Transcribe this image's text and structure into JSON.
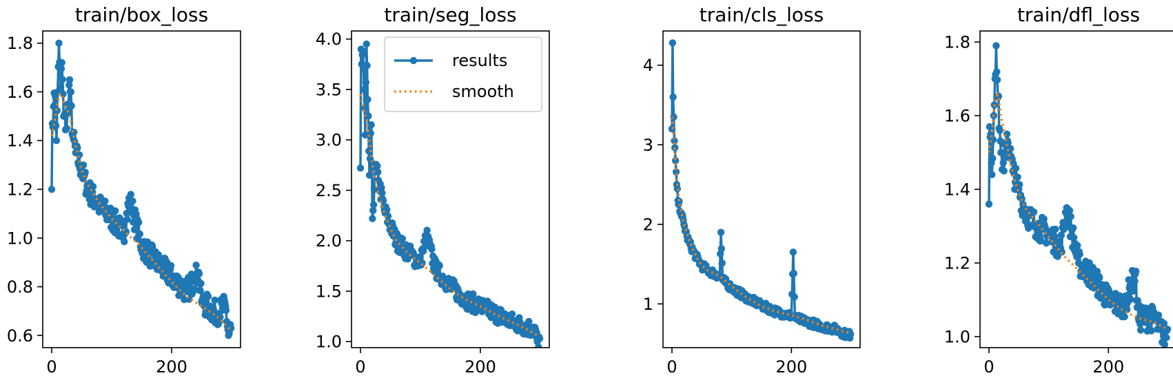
{
  "colors": {
    "results": "#1f77b4",
    "smooth": "#ff7f0e",
    "axis": "#000000"
  },
  "legend": {
    "location": "upper right (in second panel)",
    "results_label": "results",
    "smooth_label": "smooth"
  },
  "chart_data": [
    {
      "type": "line",
      "title": "train/box_loss",
      "xlim": [
        -15,
        315
      ],
      "ylim": [
        0.55,
        1.85
      ],
      "xticks": [
        0,
        200
      ],
      "yticks": [
        0.6,
        0.8,
        1.0,
        1.2,
        1.4,
        1.6,
        1.8
      ],
      "ytick_labels": [
        "0.6",
        "0.8",
        "1.0",
        "1.2",
        "1.4",
        "1.6",
        "1.8"
      ],
      "n_points": 300,
      "series": [
        {
          "name": "results",
          "style": "line+markers",
          "key_points": [
            [
              0,
              1.2
            ],
            [
              1,
              1.47
            ],
            [
              3,
              1.54
            ],
            [
              6,
              1.58
            ],
            [
              8,
              1.4
            ],
            [
              10,
              1.6
            ],
            [
              12,
              1.8
            ],
            [
              15,
              1.62
            ],
            [
              17,
              1.72
            ],
            [
              20,
              1.5
            ],
            [
              25,
              1.45
            ],
            [
              30,
              1.65
            ],
            [
              35,
              1.42
            ],
            [
              40,
              1.35
            ],
            [
              50,
              1.28
            ],
            [
              60,
              1.2
            ],
            [
              80,
              1.13
            ],
            [
              100,
              1.08
            ],
            [
              120,
              1.02
            ],
            [
              130,
              1.16
            ],
            [
              150,
              0.97
            ],
            [
              175,
              0.9
            ],
            [
              200,
              0.84
            ],
            [
              225,
              0.78
            ],
            [
              245,
              0.86
            ],
            [
              250,
              0.74
            ],
            [
              275,
              0.69
            ],
            [
              290,
              0.72
            ],
            [
              295,
              0.6
            ],
            [
              299,
              0.63
            ]
          ],
          "noise": 0.05
        },
        {
          "name": "smooth",
          "style": "dotted",
          "key_points": [
            [
              0,
              1.42
            ],
            [
              5,
              1.48
            ],
            [
              10,
              1.56
            ],
            [
              15,
              1.6
            ],
            [
              20,
              1.56
            ],
            [
              30,
              1.5
            ],
            [
              40,
              1.38
            ],
            [
              50,
              1.28
            ],
            [
              60,
              1.22
            ],
            [
              80,
              1.14
            ],
            [
              100,
              1.08
            ],
            [
              125,
              1.02
            ],
            [
              150,
              0.96
            ],
            [
              175,
              0.89
            ],
            [
              200,
              0.82
            ],
            [
              225,
              0.76
            ],
            [
              250,
              0.72
            ],
            [
              275,
              0.68
            ],
            [
              299,
              0.62
            ]
          ]
        }
      ]
    },
    {
      "type": "line",
      "title": "train/seg_loss",
      "xlim": [
        -15,
        315
      ],
      "ylim": [
        0.94,
        4.08
      ],
      "xticks": [
        0,
        200
      ],
      "yticks": [
        1.0,
        1.5,
        2.0,
        2.5,
        3.0,
        3.5,
        4.0
      ],
      "ytick_labels": [
        "1.0",
        "1.5",
        "2.0",
        "2.5",
        "3.0",
        "3.5",
        "4.0"
      ],
      "n_points": 300,
      "series": [
        {
          "name": "results",
          "style": "line+markers",
          "key_points": [
            [
              0,
              2.72
            ],
            [
              1,
              3.9
            ],
            [
              2,
              3.75
            ],
            [
              4,
              3.88
            ],
            [
              6,
              3.5
            ],
            [
              8,
              3.05
            ],
            [
              10,
              3.95
            ],
            [
              12,
              3.4
            ],
            [
              15,
              2.65
            ],
            [
              18,
              3.15
            ],
            [
              20,
              2.22
            ],
            [
              25,
              2.75
            ],
            [
              30,
              2.6
            ],
            [
              40,
              2.3
            ],
            [
              50,
              2.15
            ],
            [
              60,
              2.0
            ],
            [
              80,
              1.88
            ],
            [
              100,
              1.78
            ],
            [
              110,
              2.05
            ],
            [
              125,
              1.72
            ],
            [
              150,
              1.55
            ],
            [
              175,
              1.42
            ],
            [
              200,
              1.35
            ],
            [
              225,
              1.28
            ],
            [
              250,
              1.2
            ],
            [
              275,
              1.15
            ],
            [
              290,
              1.12
            ],
            [
              295,
              1.0
            ],
            [
              299,
              1.03
            ]
          ],
          "noise": 0.09
        },
        {
          "name": "smooth",
          "style": "dotted",
          "key_points": [
            [
              0,
              3.45
            ],
            [
              5,
              3.3
            ],
            [
              10,
              3.2
            ],
            [
              15,
              3.0
            ],
            [
              20,
              2.75
            ],
            [
              30,
              2.45
            ],
            [
              40,
              2.27
            ],
            [
              50,
              2.12
            ],
            [
              60,
              2.0
            ],
            [
              80,
              1.87
            ],
            [
              100,
              1.78
            ],
            [
              125,
              1.65
            ],
            [
              150,
              1.52
            ],
            [
              175,
              1.42
            ],
            [
              200,
              1.35
            ],
            [
              225,
              1.27
            ],
            [
              250,
              1.2
            ],
            [
              275,
              1.13
            ],
            [
              299,
              1.05
            ]
          ]
        }
      ]
    },
    {
      "type": "line",
      "title": "train/cls_loss",
      "xlim": [
        -15,
        315
      ],
      "ylim": [
        0.45,
        4.43
      ],
      "xticks": [
        0,
        200
      ],
      "yticks": [
        1,
        2,
        3,
        4
      ],
      "ytick_labels": [
        "1",
        "2",
        "3",
        "4"
      ],
      "n_points": 300,
      "series": [
        {
          "name": "results",
          "style": "line+markers",
          "key_points": [
            [
              0,
              3.2
            ],
            [
              1,
              4.28
            ],
            [
              2,
              3.6
            ],
            [
              4,
              3.05
            ],
            [
              6,
              2.8
            ],
            [
              8,
              2.5
            ],
            [
              10,
              2.3
            ],
            [
              15,
              2.15
            ],
            [
              20,
              2.0
            ],
            [
              25,
              1.85
            ],
            [
              30,
              1.75
            ],
            [
              40,
              1.6
            ],
            [
              50,
              1.48
            ],
            [
              60,
              1.42
            ],
            [
              80,
              1.35
            ],
            [
              82,
              1.9
            ],
            [
              85,
              1.3
            ],
            [
              100,
              1.2
            ],
            [
              125,
              1.08
            ],
            [
              150,
              0.98
            ],
            [
              175,
              0.9
            ],
            [
              200,
              0.85
            ],
            [
              203,
              1.65
            ],
            [
              206,
              0.82
            ],
            [
              225,
              0.78
            ],
            [
              250,
              0.72
            ],
            [
              275,
              0.68
            ],
            [
              295,
              0.6
            ],
            [
              299,
              0.62
            ]
          ],
          "noise": 0.05
        },
        {
          "name": "smooth",
          "style": "dotted",
          "key_points": [
            [
              0,
              3.35
            ],
            [
              4,
              3.0
            ],
            [
              8,
              2.6
            ],
            [
              12,
              2.3
            ],
            [
              20,
              2.0
            ],
            [
              30,
              1.78
            ],
            [
              40,
              1.6
            ],
            [
              50,
              1.48
            ],
            [
              60,
              1.42
            ],
            [
              80,
              1.35
            ],
            [
              100,
              1.22
            ],
            [
              125,
              1.08
            ],
            [
              150,
              0.97
            ],
            [
              175,
              0.9
            ],
            [
              200,
              0.86
            ],
            [
              225,
              0.8
            ],
            [
              250,
              0.73
            ],
            [
              275,
              0.68
            ],
            [
              299,
              0.63
            ]
          ]
        }
      ]
    },
    {
      "type": "line",
      "title": "train/dfl_loss",
      "xlim": [
        -15,
        315
      ],
      "ylim": [
        0.97,
        1.83
      ],
      "xticks": [
        0,
        200
      ],
      "yticks": [
        1.0,
        1.2,
        1.4,
        1.6,
        1.8
      ],
      "ytick_labels": [
        "1.0",
        "1.2",
        "1.4",
        "1.6",
        "1.8"
      ],
      "n_points": 300,
      "series": [
        {
          "name": "results",
          "style": "line+markers",
          "key_points": [
            [
              0,
              1.36
            ],
            [
              1,
              1.57
            ],
            [
              3,
              1.55
            ],
            [
              5,
              1.44
            ],
            [
              8,
              1.6
            ],
            [
              10,
              1.7
            ],
            [
              12,
              1.79
            ],
            [
              15,
              1.65
            ],
            [
              18,
              1.56
            ],
            [
              20,
              1.5
            ],
            [
              25,
              1.45
            ],
            [
              30,
              1.55
            ],
            [
              40,
              1.45
            ],
            [
              50,
              1.4
            ],
            [
              60,
              1.34
            ],
            [
              80,
              1.3
            ],
            [
              100,
              1.28
            ],
            [
              120,
              1.24
            ],
            [
              130,
              1.35
            ],
            [
              150,
              1.2
            ],
            [
              175,
              1.16
            ],
            [
              200,
              1.1
            ],
            [
              225,
              1.08
            ],
            [
              245,
              1.17
            ],
            [
              250,
              1.05
            ],
            [
              275,
              1.05
            ],
            [
              295,
              1.0
            ],
            [
              299,
              1.02
            ]
          ],
          "noise": 0.035
        },
        {
          "name": "smooth",
          "style": "dotted",
          "key_points": [
            [
              0,
              1.5
            ],
            [
              5,
              1.55
            ],
            [
              10,
              1.64
            ],
            [
              15,
              1.66
            ],
            [
              20,
              1.6
            ],
            [
              30,
              1.52
            ],
            [
              40,
              1.44
            ],
            [
              50,
              1.39
            ],
            [
              60,
              1.35
            ],
            [
              80,
              1.31
            ],
            [
              100,
              1.27
            ],
            [
              125,
              1.22
            ],
            [
              150,
              1.18
            ],
            [
              175,
              1.14
            ],
            [
              200,
              1.1
            ],
            [
              225,
              1.07
            ],
            [
              250,
              1.05
            ],
            [
              275,
              1.04
            ],
            [
              299,
              1.02
            ]
          ]
        }
      ]
    }
  ]
}
